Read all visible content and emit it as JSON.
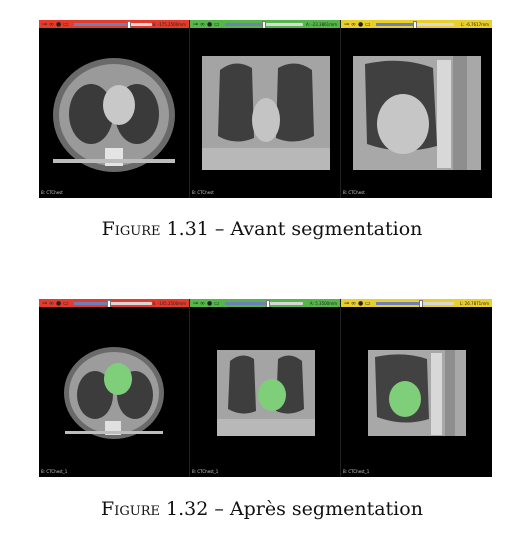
{
  "figures": [
    {
      "caption": {
        "prefix": "Figure 1.31",
        "dash": "–",
        "text": "Avant segmentation"
      },
      "views": [
        {
          "toolbar_color": "#e53b2c",
          "slider_value": 0.7,
          "readout": "S: -175.2500mm",
          "label": "B: CTChest"
        },
        {
          "toolbar_color": "#55b64a",
          "slider_value": 0.5,
          "readout": "A: -23.3861mm",
          "label": "B: CTChest"
        },
        {
          "toolbar_color": "#e9cf2b",
          "slider_value": 0.5,
          "readout": "L: -6.7617mm",
          "label": "B: CTChest"
        }
      ]
    },
    {
      "caption": {
        "prefix": "Figure 1.32",
        "dash": "–",
        "text": "Après segmentation"
      },
      "views": [
        {
          "toolbar_color": "#e53b2c",
          "slider_value": 0.45,
          "readout": "S: -145.2500mm",
          "label": "B: CTChest_1"
        },
        {
          "toolbar_color": "#55b64a",
          "slider_value": 0.55,
          "readout": "A: 5.3500mm",
          "label": "B: CTChest_1"
        },
        {
          "toolbar_color": "#e9cf2b",
          "slider_value": 0.58,
          "readout": "L: 26.7871mm",
          "label": "B: CTChest_1"
        }
      ]
    }
  ],
  "toolbar_icons": [
    "pin-icon",
    "link-icon",
    "eye-icon",
    "window-icon"
  ],
  "segmentation_color": "#7fcf7a"
}
